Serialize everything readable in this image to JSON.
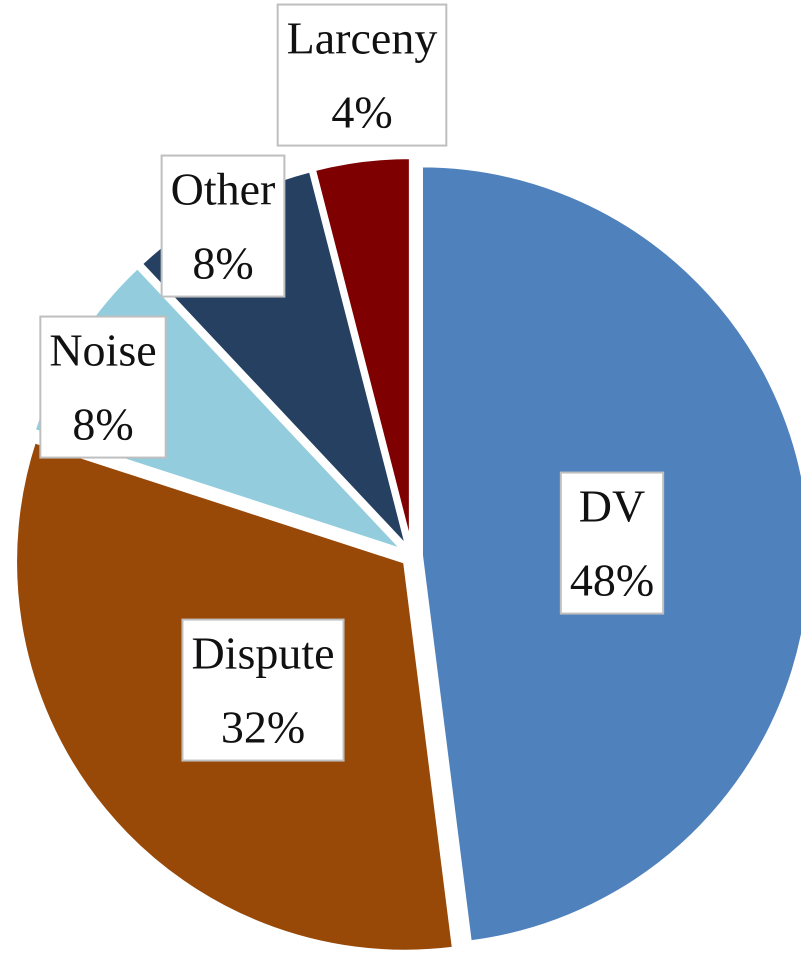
{
  "chart_data": {
    "type": "pie",
    "categories": [
      "DV",
      "Dispute",
      "Noise",
      "Other",
      "Larceny"
    ],
    "values": [
      48,
      32,
      8,
      8,
      4
    ],
    "value_labels": [
      "48%",
      "32%",
      "8%",
      "8%",
      "4%"
    ],
    "colors": [
      "#4f81bd",
      "#984807",
      "#93cddd",
      "#254061",
      "#7f0000"
    ]
  }
}
